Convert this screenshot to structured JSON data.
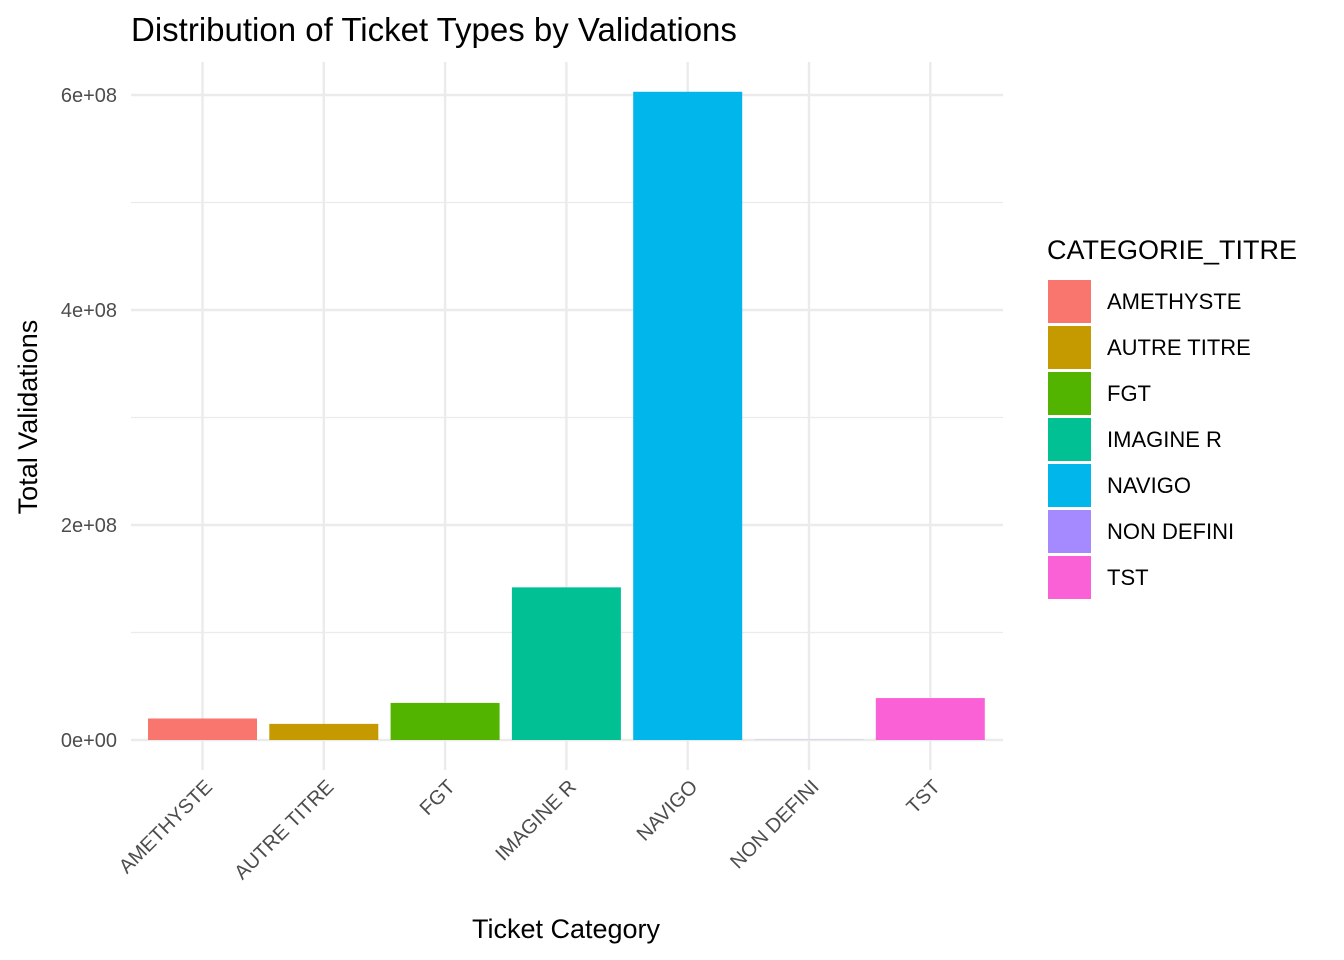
{
  "chart_data": {
    "type": "bar",
    "title": "Distribution of Ticket Types by Validations",
    "xlabel": "Ticket Category",
    "ylabel": "Total Validations",
    "categories": [
      "AMETHYSTE",
      "AUTRE TITRE",
      "FGT",
      "IMAGINE R",
      "NAVIGO",
      "NON DEFINI",
      "TST"
    ],
    "values": [
      20000000,
      15000000,
      34500000,
      142000000,
      603000000,
      200000,
      39000000
    ],
    "colors": [
      "#F8766D",
      "#C49A00",
      "#53B400",
      "#00C094",
      "#00B6EB",
      "#A58AFF",
      "#FB61D7"
    ],
    "ylim": [
      0,
      620000000
    ],
    "yticks": [
      0,
      200000000,
      400000000,
      600000000
    ],
    "ytick_labels": [
      "0e+00",
      "2e+08",
      "4e+08",
      "6e+08"
    ],
    "grid": true,
    "legend": {
      "title": "CATEGORIE_TITRE",
      "position": "right",
      "entries": [
        "AMETHYSTE",
        "AUTRE TITRE",
        "FGT",
        "IMAGINE R",
        "NAVIGO",
        "NON DEFINI",
        "TST"
      ]
    }
  }
}
